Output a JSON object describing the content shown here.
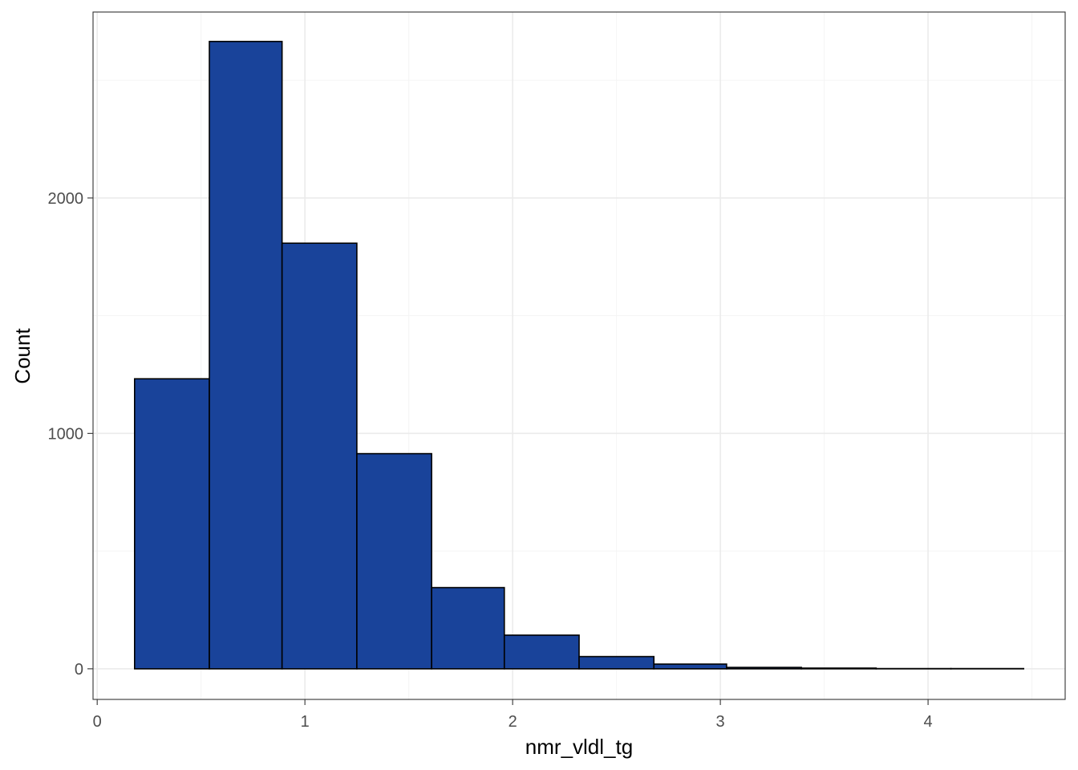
{
  "chart_data": {
    "type": "bar",
    "subtype": "histogram",
    "title": "",
    "xlabel": "nmr_vldl_tg",
    "ylabel": "Count",
    "xlim": [
      -0.02,
      4.66
    ],
    "ylim": [
      -130,
      2790
    ],
    "x_ticks": [
      0,
      1,
      2,
      3,
      4
    ],
    "y_ticks": [
      0,
      1000,
      2000
    ],
    "x_minor_ticks": [
      0.5,
      1.5,
      2.5,
      3.5,
      4.5
    ],
    "y_minor_ticks": [
      500,
      1500,
      2500
    ],
    "bins": [
      {
        "x0": 0.18,
        "x1": 0.54,
        "count": 1232
      },
      {
        "x0": 0.54,
        "x1": 0.89,
        "count": 2665
      },
      {
        "x0": 0.89,
        "x1": 1.25,
        "count": 1808
      },
      {
        "x0": 1.25,
        "x1": 1.61,
        "count": 914
      },
      {
        "x0": 1.61,
        "x1": 1.96,
        "count": 345
      },
      {
        "x0": 1.96,
        "x1": 2.32,
        "count": 143
      },
      {
        "x0": 2.32,
        "x1": 2.68,
        "count": 52
      },
      {
        "x0": 2.68,
        "x1": 3.03,
        "count": 20
      },
      {
        "x0": 3.03,
        "x1": 3.39,
        "count": 6
      },
      {
        "x0": 3.39,
        "x1": 3.75,
        "count": 3
      },
      {
        "x0": 3.75,
        "x1": 4.11,
        "count": 1
      },
      {
        "x0": 4.11,
        "x1": 4.46,
        "count": 1
      }
    ],
    "grid": true,
    "legend": "none",
    "colors": {
      "bar_fill": "#19439A",
      "bar_stroke": "#000000",
      "grid_major": "#EBEBEB",
      "grid_minor": "#F5F5F5",
      "panel_border": "#333333",
      "tick_text": "#4D4D4D"
    }
  }
}
